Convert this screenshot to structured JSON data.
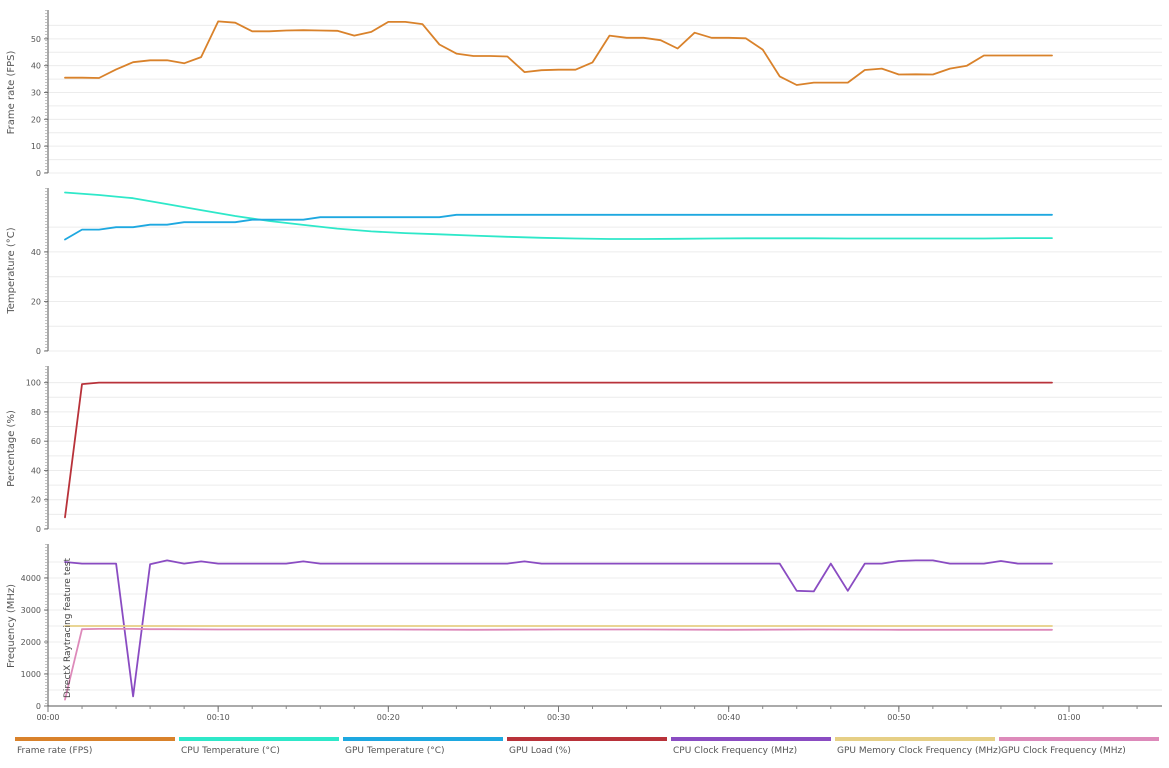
{
  "chart_data": {
    "type": "line",
    "xaxis": {
      "ticks": [
        "00:00",
        "00:10",
        "00:20",
        "00:30",
        "00:40",
        "00:50",
        "01:00"
      ],
      "tick_seconds": [
        0,
        10,
        20,
        30,
        40,
        50,
        60
      ],
      "range_seconds": [
        0,
        65
      ]
    },
    "grid": true,
    "legend_position": "bottom",
    "annotations": [
      {
        "text": "DirectX Raytracing feature test",
        "time_seconds": 0.6
      }
    ],
    "panels": [
      {
        "ylabel": "Frame rate (FPS)",
        "ylim": [
          0,
          60
        ],
        "yticks": [
          0,
          10,
          20,
          30,
          40,
          50
        ],
        "series": [
          {
            "name": "Frame rate (FPS)",
            "color": "#d9822b",
            "x": [
              1,
              2,
              3,
              4,
              5,
              6,
              7,
              8,
              9,
              10,
              11,
              12,
              13,
              14,
              15,
              16,
              17,
              18,
              19,
              20,
              21,
              22,
              23,
              24,
              25,
              26,
              27,
              28,
              29,
              30,
              31,
              32,
              33,
              34,
              35,
              36,
              37,
              38,
              39,
              40,
              41,
              42,
              43,
              44,
              45,
              46,
              47,
              48,
              49,
              50,
              51,
              52,
              53,
              54,
              55,
              56,
              57,
              58,
              59
            ],
            "values": [
              35.5,
              35.5,
              35.4,
              38.6,
              41.3,
              42,
              42,
              40.9,
              43.2,
              56.5,
              56,
              52.8,
              52.8,
              53.1,
              53.2,
              53.1,
              53,
              51.2,
              52.6,
              56.3,
              56.3,
              55.5,
              47.9,
              44.5,
              43.6,
              43.6,
              43.4,
              37.6,
              38.3,
              38.5,
              38.5,
              41.2,
              51.2,
              50.4,
              50.4,
              49.5,
              46.4,
              52.3,
              50.4,
              50.4,
              50.2,
              46,
              36,
              32.8,
              33.7,
              33.7,
              33.7,
              38.4,
              38.9,
              36.7,
              36.8,
              36.7,
              38.9,
              40,
              43.8,
              43.8,
              43.8,
              43.8,
              43.8
            ]
          }
        ]
      },
      {
        "ylabel": "Temperature (°C)",
        "ylim": [
          0,
          65
        ],
        "yticks": [
          0,
          20,
          40
        ],
        "series": [
          {
            "name": "CPU Temperature (°C)",
            "color": "#2ee8c9",
            "x": [
              1,
              3,
              5,
              7,
              9,
              11,
              13,
              15,
              17,
              19,
              21,
              23,
              25,
              27,
              29,
              31,
              33,
              35,
              37,
              39,
              41,
              43,
              45,
              47,
              49,
              51,
              53,
              55,
              57,
              59
            ],
            "values": [
              64,
              63,
              61.7,
              59.3,
              56.9,
              54.5,
              52.5,
              50.9,
              49.4,
              48.3,
              47.6,
              47.1,
              46.6,
              46.1,
              45.7,
              45.4,
              45.2,
              45.2,
              45.3,
              45.4,
              45.5,
              45.5,
              45.5,
              45.4,
              45.4,
              45.4,
              45.4,
              45.4,
              45.6,
              45.6
            ]
          },
          {
            "name": "GPU Temperature (°C)",
            "color": "#1ea8e0",
            "x": [
              1,
              2,
              3,
              4,
              5,
              6,
              7,
              8,
              9,
              10,
              11,
              12,
              13,
              14,
              15,
              16,
              17,
              18,
              19,
              20,
              21,
              22,
              23,
              24,
              25,
              30,
              35,
              40,
              45,
              50,
              55,
              59
            ],
            "values": [
              45,
              49,
              49,
              50,
              50,
              51,
              51,
              52,
              52,
              52,
              52,
              53,
              53,
              53,
              53,
              54,
              54,
              54,
              54,
              54,
              54,
              54,
              54,
              55,
              55,
              55,
              55,
              55,
              55,
              55,
              55,
              55
            ]
          }
        ]
      },
      {
        "ylabel": "Percentage (%)",
        "ylim": [
          0,
          110
        ],
        "yticks": [
          0,
          20,
          40,
          60,
          80,
          100
        ],
        "series": [
          {
            "name": "GPU Load (%)",
            "color": "#b8323a",
            "x": [
              1,
              2,
              3,
              4,
              10,
              20,
              30,
              40,
              50,
              59
            ],
            "values": [
              8,
              99,
              100,
              100,
              100,
              100,
              100,
              100,
              100,
              100
            ]
          }
        ]
      },
      {
        "ylabel": "Frequency (MHz)",
        "ylim": [
          0,
          5000
        ],
        "yticks": [
          0,
          1000,
          2000,
          3000,
          4000
        ],
        "series": [
          {
            "name": "CPU Clock Frequency (MHz)",
            "color": "#8a4cc2",
            "x": [
              1,
              2,
              3,
              4,
              5,
              6,
              7,
              8,
              9,
              10,
              12,
              14,
              15,
              16,
              20,
              25,
              27,
              28,
              29,
              30,
              35,
              40,
              43,
              44,
              45,
              46,
              47,
              48,
              49,
              50,
              51,
              52,
              53,
              54,
              55,
              56,
              57,
              58,
              59
            ],
            "values": [
              4500,
              4450,
              4450,
              4450,
              300,
              4430,
              4550,
              4450,
              4520,
              4450,
              4450,
              4450,
              4520,
              4450,
              4450,
              4450,
              4450,
              4520,
              4450,
              4450,
              4450,
              4450,
              4450,
              3600,
              3580,
              4450,
              3600,
              4450,
              4450,
              4530,
              4550,
              4550,
              4450,
              4450,
              4450,
              4530,
              4450,
              4450,
              4450
            ]
          },
          {
            "name": "GPU Memory Clock Frequency (MHz)",
            "color": "#e6cf85",
            "x": [
              1,
              10,
              20,
              30,
              40,
              50,
              59
            ],
            "values": [
              2500,
              2500,
              2500,
              2500,
              2500,
              2500,
              2500
            ]
          },
          {
            "name": "GPU Clock Frequency (MHz)",
            "color": "#dd8aba",
            "x": [
              1,
              2,
              3,
              4,
              5,
              6,
              7,
              10,
              15,
              20,
              25,
              30,
              35,
              40,
              45,
              50,
              55,
              59
            ],
            "values": [
              200,
              2400,
              2410,
              2410,
              2410,
              2400,
              2400,
              2390,
              2390,
              2390,
              2380,
              2390,
              2390,
              2380,
              2390,
              2380,
              2380,
              2380
            ]
          }
        ]
      }
    ]
  },
  "legend": [
    {
      "label": "Frame rate (FPS)",
      "color": "#d9822b"
    },
    {
      "label": "CPU Temperature (°C)",
      "color": "#2ee8c9"
    },
    {
      "label": "GPU Temperature (°C)",
      "color": "#1ea8e0"
    },
    {
      "label": "GPU Load (%)",
      "color": "#b8323a"
    },
    {
      "label": "CPU Clock Frequency (MHz)",
      "color": "#8a4cc2"
    },
    {
      "label": "GPU Memory Clock Frequency (MHz)",
      "color": "#e6cf85"
    },
    {
      "label": "GPU Clock Frequency (MHz)",
      "color": "#dd8aba"
    }
  ]
}
